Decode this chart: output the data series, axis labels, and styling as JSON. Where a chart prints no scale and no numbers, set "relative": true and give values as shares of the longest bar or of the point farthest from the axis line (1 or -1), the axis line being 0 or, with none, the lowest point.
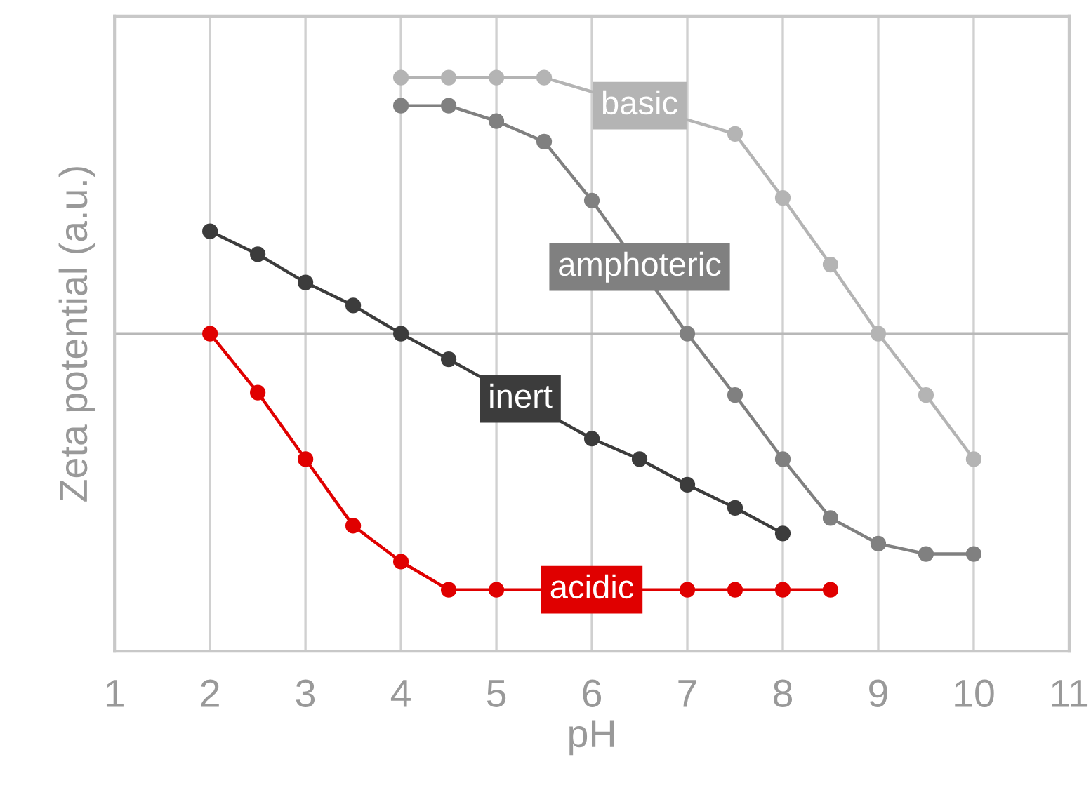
{
  "chart_data": {
    "type": "line",
    "xlabel": "pH",
    "ylabel": "Zeta potential (a.u.)",
    "relative": true,
    "xlim": [
      1,
      11
    ],
    "xticks": [
      1,
      2,
      3,
      4,
      5,
      6,
      7,
      8,
      9,
      10,
      11
    ],
    "grid": "x",
    "legend": false,
    "marker": "circle",
    "line_style": "solid",
    "series": [
      {
        "name": "basic",
        "color": "#b4b4b4",
        "x": [
          4,
          4.5,
          5,
          5.5,
          7.5,
          8,
          8.5,
          9,
          9.5,
          10
        ],
        "values": [
          1.0,
          1.0,
          1.0,
          1.0,
          0.78,
          0.53,
          0.27,
          0,
          -0.24,
          -0.49
        ]
      },
      {
        "name": "amphoteric",
        "color": "#808080",
        "x": [
          4,
          4.5,
          5,
          5.5,
          6,
          7,
          7.5,
          8,
          8.5,
          9,
          9.5,
          10
        ],
        "values": [
          0.89,
          0.89,
          0.83,
          0.75,
          0.52,
          0,
          -0.24,
          -0.49,
          -0.72,
          -0.82,
          -0.86,
          -0.86
        ]
      },
      {
        "name": "inert",
        "color": "#3c3c3c",
        "x": [
          2,
          2.5,
          3,
          3.5,
          4,
          4.5,
          6,
          6.5,
          7,
          7.5,
          8
        ],
        "values": [
          0.4,
          0.31,
          0.2,
          0.11,
          0,
          -0.1,
          -0.41,
          -0.49,
          -0.59,
          -0.68,
          -0.78
        ]
      },
      {
        "name": "acidic",
        "color": "#e00000",
        "x": [
          2,
          2.5,
          3,
          3.5,
          4,
          4.5,
          5,
          7,
          7.5,
          8,
          8.5
        ],
        "values": [
          0,
          -0.23,
          -0.49,
          -0.75,
          -0.89,
          -1.0,
          -1.0,
          -1.0,
          -1.0,
          -1.0,
          -1.0
        ]
      }
    ]
  }
}
